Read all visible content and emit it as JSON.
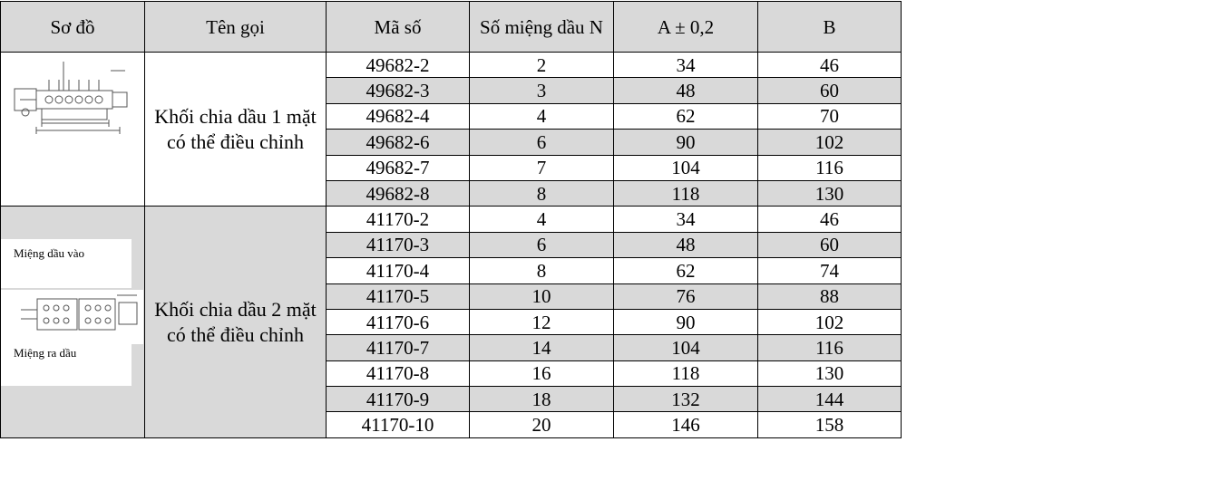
{
  "headers": [
    "Sơ đồ",
    "Tên gọi",
    "Mã số",
    "Số miệng dầu N",
    "A ± 0,2",
    "B"
  ],
  "groups": [
    {
      "name": "Khối chia dầu 1 mặt có thể điều chỉnh",
      "rows": [
        {
          "code": "49682-2",
          "n": "2",
          "a": "34",
          "b": "46"
        },
        {
          "code": "49682-3",
          "n": "3",
          "a": "48",
          "b": "60"
        },
        {
          "code": "49682-4",
          "n": "4",
          "a": "62",
          "b": "70"
        },
        {
          "code": "49682-6",
          "n": "6",
          "a": "90",
          "b": "102"
        },
        {
          "code": "49682-7",
          "n": "7",
          "a": "104",
          "b": "116"
        },
        {
          "code": "49682-8",
          "n": "8",
          "a": "118",
          "b": "130"
        }
      ]
    },
    {
      "name": "Khối chia dầu 2 mặt có thể điều chỉnh",
      "inlet_label": "Miệng dầu vào",
      "outlet_label": "Miệng ra dầu",
      "rows": [
        {
          "code": "41170-2",
          "n": "4",
          "a": "34",
          "b": "46"
        },
        {
          "code": "41170-3",
          "n": "6",
          "a": "48",
          "b": "60"
        },
        {
          "code": "41170-4",
          "n": "8",
          "a": "62",
          "b": "74"
        },
        {
          "code": "41170-5",
          "n": "10",
          "a": "76",
          "b": "88"
        },
        {
          "code": "41170-6",
          "n": "12",
          "a": "90",
          "b": "102"
        },
        {
          "code": "41170-7",
          "n": "14",
          "a": "104",
          "b": "116"
        },
        {
          "code": "41170-8",
          "n": "16",
          "a": "118",
          "b": "130"
        },
        {
          "code": "41170-9",
          "n": "18",
          "a": "132",
          "b": "144"
        },
        {
          "code": "41170-10",
          "n": "20",
          "a": "146",
          "b": "158"
        }
      ]
    }
  ],
  "colors": {
    "shade": "#d9d9d9",
    "white": "#ffffff",
    "border": "#000000"
  }
}
